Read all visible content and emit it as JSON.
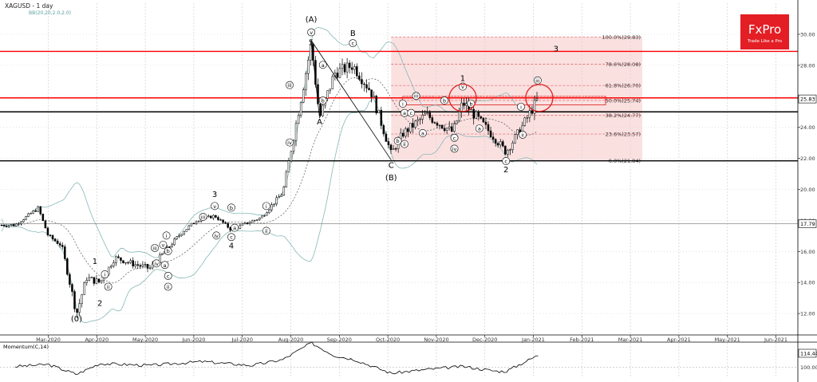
{
  "header": {
    "symbol_label": "XAGUSD - 1 day",
    "indicator_label": "BB(20,20,2.0,2.0)"
  },
  "logo": {
    "brand": "FxPro",
    "tagline": "Trade Like a Pro",
    "bg_color": "#e31e24"
  },
  "chart_data": {
    "type": "candlestick",
    "instrument": "XAGUSD",
    "timeframe": "1 day",
    "ylim": [
      11.0,
      31.0
    ],
    "y_ticks": [
      "30.00",
      "28.00",
      "26.00",
      "24.00",
      "22.00",
      "20.00",
      "18.00",
      "16.00",
      "14.00",
      "12.00"
    ],
    "x_ticks": [
      "Mar-2020",
      "Apr-2020",
      "May-2020",
      "Jun-2020",
      "Jul-2020",
      "Aug-2020",
      "Sep-2020",
      "Oct-2020",
      "Nov-2020",
      "Dec-2020",
      "Jan-2021",
      "Feb-2021",
      "Mar-2021",
      "Apr-2021",
      "May-2021",
      "Jun-2021"
    ],
    "current_price": "25.83",
    "ref_price": "17.79",
    "price_series": [
      [
        "2020-02-10",
        17.7
      ],
      [
        "2020-02-24",
        18.8
      ],
      [
        "2020-03-01",
        17.0
      ],
      [
        "2020-03-09",
        16.4
      ],
      [
        "2020-03-18",
        12.0
      ],
      [
        "2020-03-24",
        14.3
      ],
      [
        "2020-04-01",
        14.0
      ],
      [
        "2020-04-10",
        15.6
      ],
      [
        "2020-04-21",
        15.2
      ],
      [
        "2020-05-01",
        14.9
      ],
      [
        "2020-05-20",
        17.2
      ],
      [
        "2020-05-29",
        18.0
      ],
      [
        "2020-06-09",
        18.3
      ],
      [
        "2020-06-19",
        17.4
      ],
      [
        "2020-06-28",
        17.8
      ],
      [
        "2020-07-07",
        18.2
      ],
      [
        "2020-07-20",
        19.8
      ],
      [
        "2020-07-31",
        26.0
      ],
      [
        "2020-08-06",
        29.4
      ],
      [
        "2020-08-11",
        24.6
      ],
      [
        "2020-08-20",
        27.5
      ],
      [
        "2020-08-31",
        28.0
      ],
      [
        "2020-09-11",
        26.3
      ],
      [
        "2020-09-23",
        22.3
      ],
      [
        "2020-09-30",
        23.6
      ],
      [
        "2020-10-14",
        24.8
      ],
      [
        "2020-10-30",
        23.7
      ],
      [
        "2020-11-05",
        25.6
      ],
      [
        "2020-11-13",
        24.7
      ],
      [
        "2020-11-26",
        23.1
      ],
      [
        "2020-12-01",
        22.4
      ],
      [
        "2020-12-11",
        24.1
      ],
      [
        "2020-12-21",
        26.0
      ]
    ],
    "horizontal_levels": [
      {
        "value": 28.9,
        "color": "#ff0000"
      },
      {
        "value": 25.9,
        "color": "#ff0000"
      },
      {
        "value": 25.0,
        "color": "#000000"
      },
      {
        "value": 21.84,
        "color": "#000000"
      },
      {
        "value": 17.79,
        "color": "#888888"
      }
    ],
    "fibonacci": [
      {
        "label": "100.0%(29.83)",
        "value": 29.83
      },
      {
        "label": "78.6%(28.08)",
        "value": 28.08
      },
      {
        "label": "61.8%(26.70)",
        "value": 26.7
      },
      {
        "label": "50.0%(25.74)",
        "value": 25.74
      },
      {
        "label": "38.2%(24.77)",
        "value": 24.77
      },
      {
        "label": "23.6%(23.57)",
        "value": 23.57
      },
      {
        "label": "0.0%(21.84)",
        "value": 21.84
      }
    ],
    "wave_labels": [
      {
        "text": "(A)",
        "date": "2020-08-06",
        "price": 30.8
      },
      {
        "text": "5",
        "date": "2020-08-06",
        "price": 29.3
      },
      {
        "text": "B",
        "date": "2020-08-31",
        "price": 29.9
      },
      {
        "text": "3",
        "date": "2020-12-31",
        "price": 28.9
      },
      {
        "text": "A",
        "date": "2020-08-11",
        "price": 24.2
      },
      {
        "text": "C",
        "date": "2020-09-23",
        "price": 21.4
      },
      {
        "text": "(B)",
        "date": "2020-09-23",
        "price": 20.6
      },
      {
        "text": "1",
        "date": "2020-11-05",
        "price": 27.0
      },
      {
        "text": "2",
        "date": "2020-12-01",
        "price": 21.1
      },
      {
        "text": "3",
        "date": "2020-06-09",
        "price": 19.5
      },
      {
        "text": "4",
        "date": "2020-06-19",
        "price": 16.2
      },
      {
        "text": "1",
        "date": "2020-03-29",
        "price": 15.2
      },
      {
        "text": "2",
        "date": "2020-04-01",
        "price": 12.5
      },
      {
        "text": "(0)",
        "date": "2020-03-18",
        "price": 11.5
      },
      {
        "text": "v",
        "date": "2020-08-06",
        "price": 30.0
      },
      {
        "text": "c",
        "date": "2020-08-31",
        "price": 29.3
      },
      {
        "text": "iii",
        "date": "2020-07-24",
        "price": 26.6
      },
      {
        "text": "iv",
        "date": "2020-07-24",
        "price": 22.9
      },
      {
        "text": "a",
        "date": "2020-08-13",
        "price": 27.9
      },
      {
        "text": "b",
        "date": "2020-08-13",
        "price": 25.6
      },
      {
        "text": "i",
        "date": "2020-09-30",
        "price": 25.4
      },
      {
        "text": "ii",
        "date": "2020-10-01",
        "price": 22.8
      },
      {
        "text": "iii",
        "date": "2020-10-08",
        "price": 25.9
      },
      {
        "text": "a",
        "date": "2020-10-01",
        "price": 24.8
      },
      {
        "text": "b",
        "date": "2020-09-27",
        "price": 23.0
      },
      {
        "text": "c",
        "date": "2020-10-05",
        "price": 24.8
      },
      {
        "text": "a",
        "date": "2020-10-12",
        "price": 23.5
      },
      {
        "text": "b",
        "date": "2020-10-25",
        "price": 25.6
      },
      {
        "text": "c",
        "date": "2020-10-31",
        "price": 23.2
      },
      {
        "text": "iv",
        "date": "2020-10-31",
        "price": 22.5
      },
      {
        "text": "v",
        "date": "2020-11-05",
        "price": 26.5
      },
      {
        "text": "b",
        "date": "2020-11-10",
        "price": 25.4
      },
      {
        "text": "a",
        "date": "2020-11-15",
        "price": 23.8
      },
      {
        "text": "c",
        "date": "2020-12-01",
        "price": 21.7
      },
      {
        "text": "i",
        "date": "2020-12-10",
        "price": 25.2
      },
      {
        "text": "ii",
        "date": "2020-12-11",
        "price": 23.4
      },
      {
        "text": "iii",
        "date": "2020-12-20",
        "price": 26.9
      },
      {
        "text": "i",
        "date": "2020-05-11",
        "price": 16.9
      },
      {
        "text": "iii",
        "date": "2020-05-04",
        "price": 16.1
      },
      {
        "text": "v",
        "date": "2020-05-09",
        "price": 16.3
      },
      {
        "text": "iv",
        "date": "2020-05-05",
        "price": 15.1
      },
      {
        "text": "a",
        "date": "2020-05-10",
        "price": 15.0
      },
      {
        "text": "b",
        "date": "2020-05-12",
        "price": 15.9
      },
      {
        "text": "c",
        "date": "2020-05-12",
        "price": 14.3
      },
      {
        "text": "ii",
        "date": "2020-05-12",
        "price": 13.6
      },
      {
        "text": "i",
        "date": "2020-04-04",
        "price": 14.4
      },
      {
        "text": "ii",
        "date": "2020-04-06",
        "price": 13.6
      },
      {
        "text": "iii",
        "date": "2020-06-02",
        "price": 18.1
      },
      {
        "text": "v",
        "date": "2020-06-09",
        "price": 18.8
      },
      {
        "text": "b",
        "date": "2020-06-19",
        "price": 18.7
      },
      {
        "text": "a",
        "date": "2020-06-21",
        "price": 17.4
      },
      {
        "text": "c",
        "date": "2020-06-19",
        "price": 16.8
      },
      {
        "text": "iv",
        "date": "2020-06-10",
        "price": 16.9
      },
      {
        "text": "i",
        "date": "2020-07-10",
        "price": 18.8
      },
      {
        "text": "ii",
        "date": "2020-07-10",
        "price": 17.2
      }
    ],
    "lower_panel": {
      "title": "Momentum(C,14)",
      "ylim": [
        90.0,
        125.0
      ],
      "current": "114.44",
      "ref": "100.00",
      "series": [
        [
          "2020-02-10",
          101
        ],
        [
          "2020-03-01",
          103
        ],
        [
          "2020-03-18",
          93
        ],
        [
          "2020-04-01",
          104
        ],
        [
          "2020-05-01",
          102
        ],
        [
          "2020-06-01",
          106
        ],
        [
          "2020-07-01",
          102
        ],
        [
          "2020-07-20",
          108
        ],
        [
          "2020-08-06",
          125
        ],
        [
          "2020-08-20",
          112
        ],
        [
          "2020-09-01",
          108
        ],
        [
          "2020-09-23",
          94
        ],
        [
          "2020-10-15",
          98
        ],
        [
          "2020-11-05",
          101
        ],
        [
          "2020-11-26",
          96
        ],
        [
          "2020-12-01",
          96
        ],
        [
          "2020-12-21",
          113
        ]
      ]
    }
  }
}
